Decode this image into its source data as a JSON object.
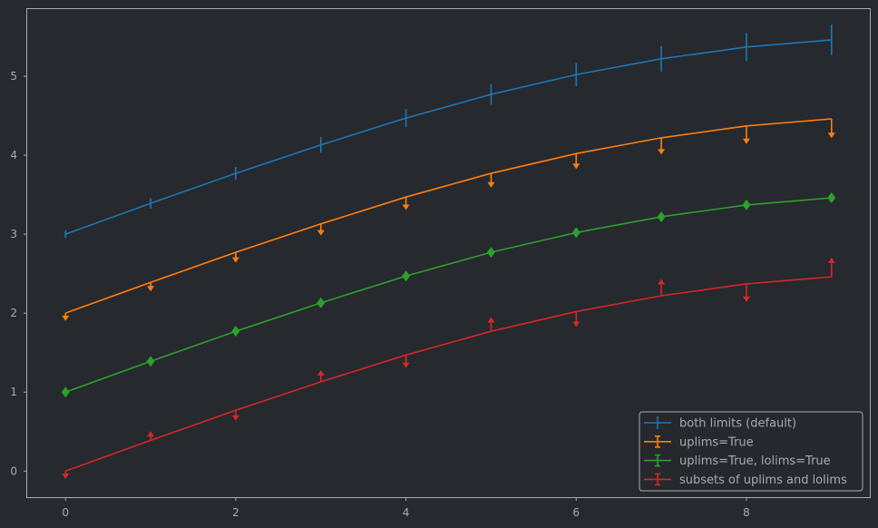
{
  "chart_data": {
    "type": "line",
    "title": "",
    "xlabel": "",
    "ylabel": "",
    "xlim": [
      -0.45,
      9.45
    ],
    "ylim": [
      -0.33,
      5.85
    ],
    "x": [
      0,
      1,
      2,
      3,
      4,
      5,
      6,
      7,
      8,
      9
    ],
    "x_ticks": [
      0,
      2,
      4,
      6,
      8
    ],
    "y_ticks": [
      0,
      1,
      2,
      3,
      4,
      5
    ],
    "grid": false,
    "legend_position": "lower-right",
    "background": "#26292e",
    "axis_color": "#a8abb0",
    "series": [
      {
        "name": "both limits (default)",
        "color": "#1f77b4",
        "values": [
          3.0,
          3.39,
          3.77,
          4.13,
          4.47,
          4.77,
          5.02,
          5.22,
          5.37,
          5.46
        ],
        "yerr": [
          0.05,
          0.066,
          0.082,
          0.098,
          0.114,
          0.13,
          0.146,
          0.162,
          0.178,
          0.194
        ],
        "limit_style": "both"
      },
      {
        "name": "uplims=True",
        "color": "#ff7f0e",
        "values": [
          2.0,
          2.39,
          2.77,
          3.13,
          3.47,
          3.77,
          4.02,
          4.22,
          4.37,
          4.46
        ],
        "yerr": [
          0.1,
          0.116,
          0.132,
          0.148,
          0.164,
          0.18,
          0.196,
          0.212,
          0.228,
          0.244
        ],
        "limit_style": "uplims"
      },
      {
        "name": "uplims=True, lolims=True",
        "color": "#2ca02c",
        "values": [
          1.0,
          1.39,
          1.77,
          2.13,
          2.47,
          2.77,
          3.02,
          3.22,
          3.37,
          3.46
        ],
        "limit_style": "diamond"
      },
      {
        "name": "subsets of uplims and lolims",
        "color": "#d62728",
        "values": [
          0.0,
          0.39,
          0.77,
          1.13,
          1.47,
          1.77,
          2.02,
          2.22,
          2.37,
          2.46
        ],
        "yerr": [
          0.1,
          0.116,
          0.132,
          0.148,
          0.164,
          0.18,
          0.196,
          0.212,
          0.228,
          0.244
        ],
        "limit_style": "mixed",
        "directions": [
          "down",
          "up",
          "down",
          "up",
          "down",
          "up",
          "down",
          "up",
          "down",
          "up"
        ]
      }
    ]
  }
}
